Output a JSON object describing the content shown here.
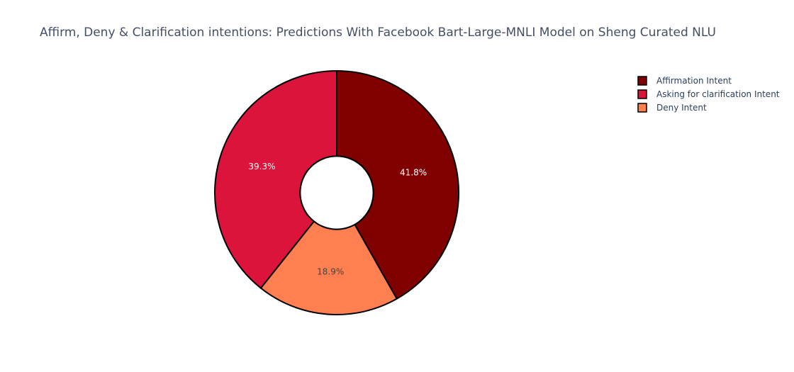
{
  "chart_data": {
    "type": "pie",
    "title": "Affirm, Deny & Clarification intentions:  Predictions With Facebook Bart-Large-MNLI Model on Sheng Curated NLU",
    "hole": 0.3,
    "slices": [
      {
        "label": "Affirmation Intent",
        "value": 41.8,
        "display": "41.8%",
        "color": "#800000",
        "text_color": "#ffffff"
      },
      {
        "label": "Deny Intent",
        "value": 18.9,
        "display": "18.9%",
        "color": "#ff7f50",
        "text_color": "#444444"
      },
      {
        "label": "Asking for clarification Intent",
        "value": 39.3,
        "display": "39.3%",
        "color": "#dc143c",
        "text_color": "#ffffff"
      }
    ],
    "legend": {
      "placement": "top-right",
      "order": [
        "Affirmation Intent",
        "Asking for clarification Intent",
        "Deny Intent"
      ]
    },
    "slice_outline_color": "#000000"
  }
}
